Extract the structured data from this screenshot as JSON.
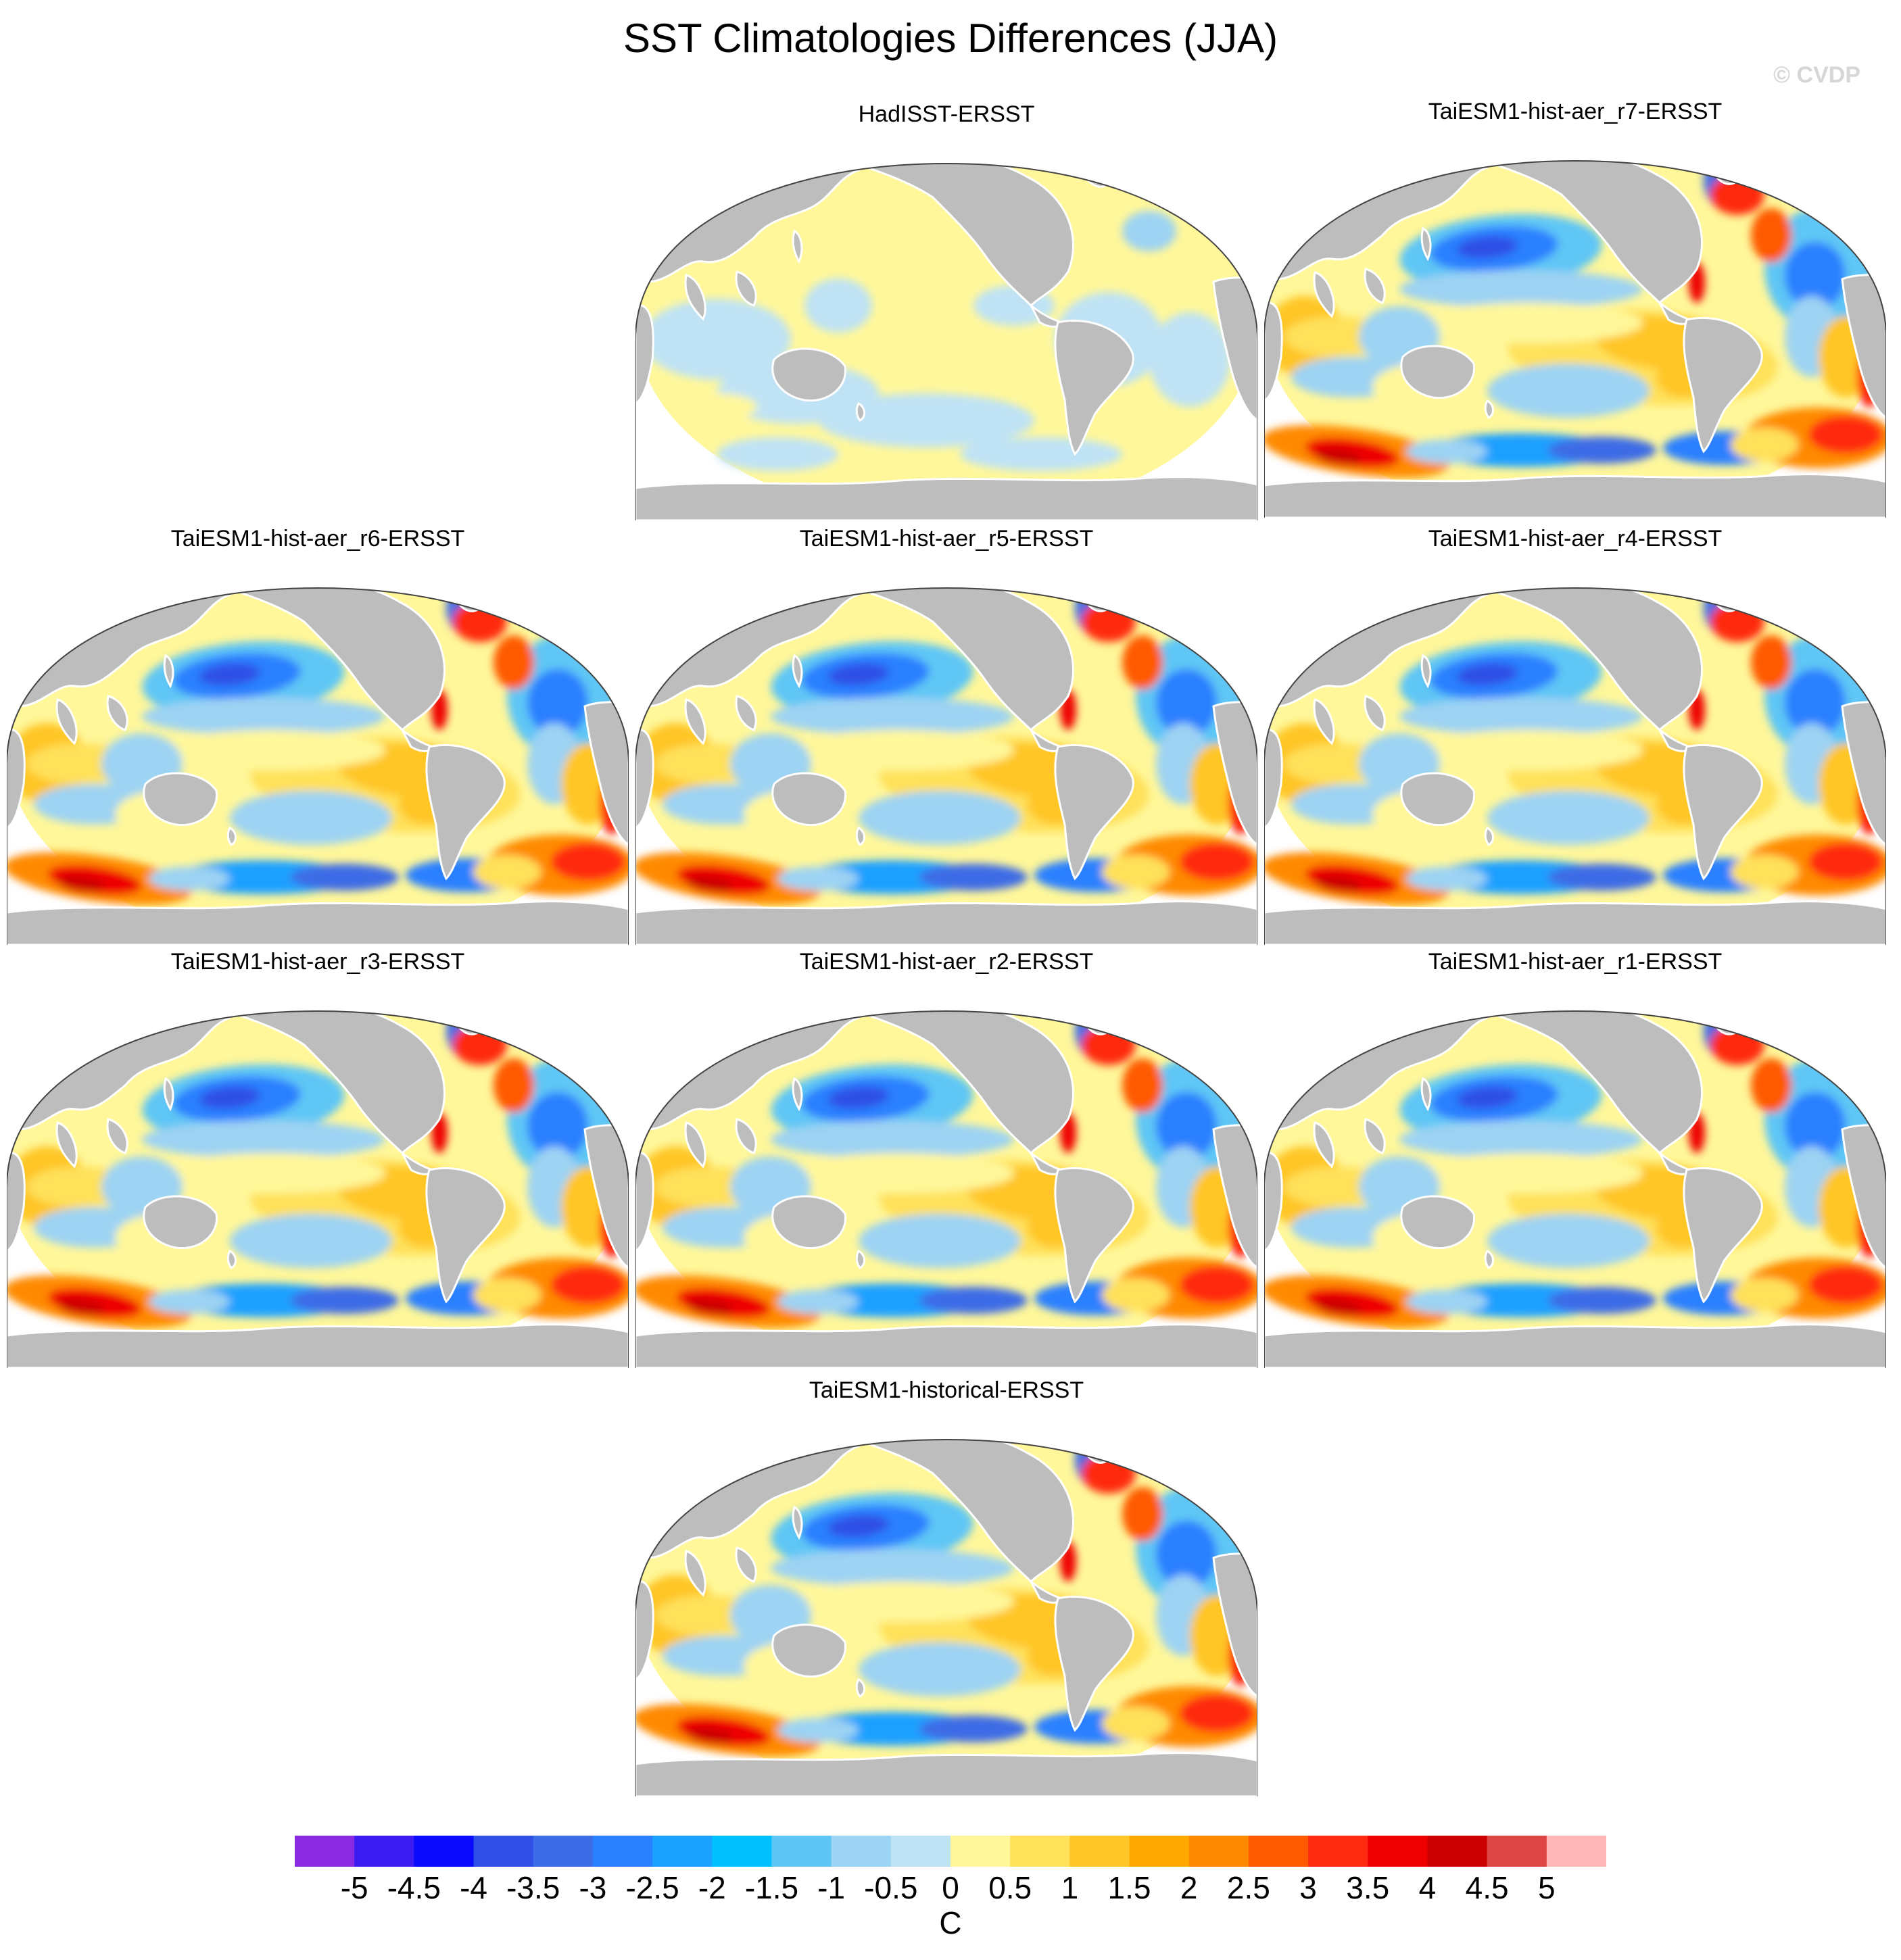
{
  "title": "SST Climatologies Differences (JJA)",
  "watermark": "© CVDP",
  "panels": [
    {
      "label": "HadISST-ERSST",
      "style": "obs"
    },
    {
      "label": "TaiESM1-hist-aer_r7-ERSST",
      "style": "model"
    },
    {
      "label": "TaiESM1-hist-aer_r6-ERSST",
      "style": "model"
    },
    {
      "label": "TaiESM1-hist-aer_r5-ERSST",
      "style": "model"
    },
    {
      "label": "TaiESM1-hist-aer_r4-ERSST",
      "style": "model"
    },
    {
      "label": "TaiESM1-hist-aer_r3-ERSST",
      "style": "model"
    },
    {
      "label": "TaiESM1-hist-aer_r2-ERSST",
      "style": "model"
    },
    {
      "label": "TaiESM1-hist-aer_r1-ERSST",
      "style": "model"
    },
    {
      "label": "TaiESM1-historical-ERSST",
      "style": "model"
    }
  ],
  "colorbar": {
    "units": "C",
    "labels": [
      "-5",
      "-4.5",
      "-4",
      "-3.5",
      "-3",
      "-2.5",
      "-2",
      "-1.5",
      "-1",
      "-0.5",
      "0",
      "0.5",
      "1",
      "1.5",
      "2",
      "2.5",
      "3",
      "3.5",
      "4",
      "4.5",
      "5"
    ],
    "colors": [
      "#8a2be2",
      "#3c1cf0",
      "#0a0aff",
      "#2f4fe6",
      "#3c6ce6",
      "#2a80ff",
      "#1aa0ff",
      "#00c0ff",
      "#5ec6f5",
      "#9dd3f3",
      "#bfe3f5",
      "#fff79a",
      "#ffe15a",
      "#ffc628",
      "#ffa800",
      "#ff8a00",
      "#ff5a00",
      "#ff2a10",
      "#ee0000",
      "#cc0000",
      "#dd4444",
      "#ffb6b6"
    ]
  },
  "map_colors": {
    "land": "#bdbdbd",
    "ocean_base": "#fff79a",
    "coast": "#ffffff"
  }
}
